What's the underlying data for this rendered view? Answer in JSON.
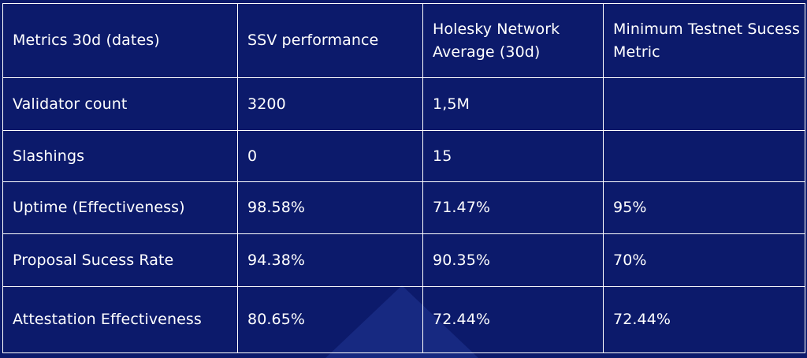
{
  "table": {
    "headers": [
      "Metrics 30d (dates)",
      "SSV performance",
      "Holesky Network Average (30d)",
      "Minimum Testnet Sucess Metric"
    ],
    "rows": [
      [
        "Validator count",
        "3200",
        "1,5M",
        ""
      ],
      [
        "Slashings",
        "0",
        "15",
        ""
      ],
      [
        "Uptime (Effectiveness)",
        "98.58%",
        "71.47%",
        "95%"
      ],
      [
        "Proposal Sucess Rate",
        "94.38%",
        "90.35%",
        "70%"
      ],
      [
        "Attestation Effectiveness",
        "80.65%",
        "72.44%",
        "72.44%"
      ]
    ]
  },
  "colors": {
    "background": "#0c1a6b",
    "border": "#ffffff",
    "text": "#ffffff"
  }
}
